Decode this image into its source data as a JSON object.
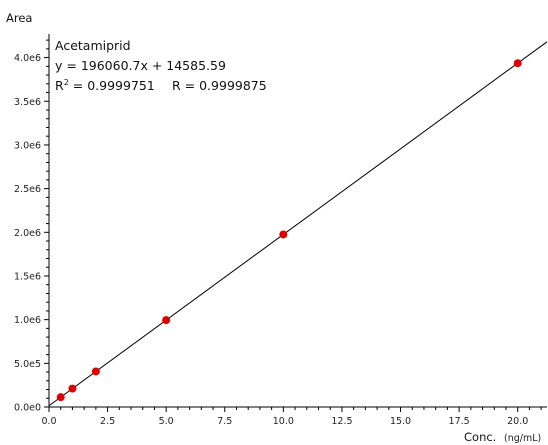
{
  "chart_data": {
    "type": "scatter",
    "ylabel": "Area",
    "xlabel": "Conc.",
    "xlabel_unit": "(ng/mL)",
    "xlim": [
      0,
      21.25
    ],
    "ylim": [
      0,
      4270000.0
    ],
    "x_ticks": [
      0,
      2.5,
      5,
      7.5,
      10,
      12.5,
      15,
      17.5,
      20
    ],
    "x_tick_labels": [
      "0.0",
      "2.5",
      "5.0",
      "7.5",
      "10.0",
      "12.5",
      "15.0",
      "17.5",
      "20.0"
    ],
    "y_ticks": [
      0,
      500000,
      1000000,
      1500000,
      2000000,
      2500000,
      3000000,
      3500000,
      4000000
    ],
    "y_tick_labels": [
      "0.0e0",
      "5.0e5",
      "1.0e6",
      "1.5e6",
      "2.0e6",
      "2.5e6",
      "3.0e6",
      "3.5e6",
      "4.0e6"
    ],
    "series": [
      {
        "x": [
          0.5,
          1,
          2,
          5,
          10,
          20
        ],
        "y": [
          112616,
          210646,
          406707,
          994889,
          1975193,
          3935800
        ],
        "color": "#dd0000"
      }
    ],
    "fit_line": {
      "slope": 196060.7,
      "intercept": 14585.59,
      "x_range": [
        0,
        21.25
      ],
      "color": "#000000"
    },
    "annotation": {
      "compound": "Acetamiprid",
      "equation": "y = 196060.7x + 14585.59",
      "r2_label": "R",
      "r2_sup": "2",
      "r2_value": " = 0.9999751",
      "r_text": "R = 0.9999875"
    },
    "grid": false
  }
}
